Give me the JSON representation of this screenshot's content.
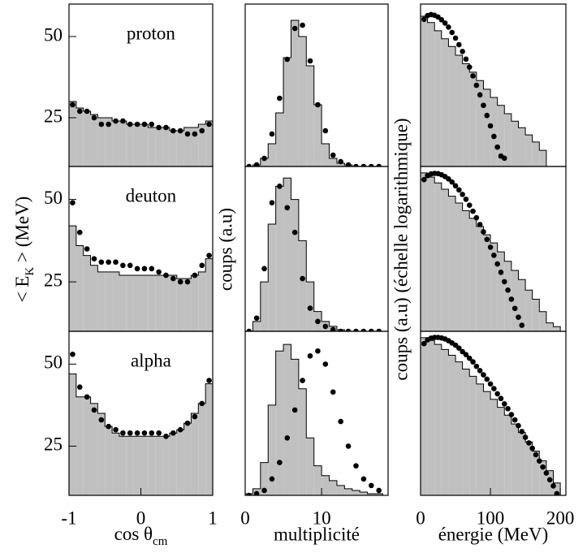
{
  "chart_data": [
    {
      "type": "histogram",
      "annotation": "proton",
      "xlim": [
        -1,
        1
      ],
      "ylim": [
        10,
        60
      ],
      "yticks": [
        25,
        50
      ],
      "bins": [
        -1,
        -0.9,
        -0.8,
        -0.7,
        -0.6,
        -0.5,
        -0.4,
        -0.3,
        -0.2,
        -0.1,
        0,
        0.1,
        0.2,
        0.3,
        0.4,
        0.5,
        0.6,
        0.7,
        0.8,
        0.9,
        1
      ],
      "counts": [
        30,
        28,
        27,
        26,
        25,
        25,
        24,
        24,
        23,
        23,
        23,
        22,
        22,
        22,
        21,
        21,
        22,
        22,
        23,
        24
      ],
      "points_x": [
        -0.95,
        -0.85,
        -0.75,
        -0.65,
        -0.55,
        -0.45,
        -0.35,
        -0.25,
        -0.15,
        -0.05,
        0.05,
        0.15,
        0.25,
        0.35,
        0.45,
        0.55,
        0.65,
        0.75,
        0.85,
        0.95
      ],
      "points_y": [
        29,
        27,
        27,
        25,
        23,
        23,
        24,
        24,
        23,
        23,
        23,
        23,
        22,
        22,
        21,
        21,
        20,
        20,
        21,
        23
      ]
    },
    {
      "type": "histogram",
      "xlim": [
        0,
        18.7
      ],
      "ylim": [
        0,
        100
      ],
      "bins": [
        0,
        1,
        2,
        3,
        4,
        5,
        6,
        7,
        8,
        9,
        10,
        11,
        12,
        13,
        14,
        15,
        16,
        17,
        18
      ],
      "counts": [
        0,
        1,
        5,
        14,
        33,
        67,
        90,
        80,
        62,
        38,
        14,
        5,
        2,
        1,
        0,
        0,
        0,
        0
      ],
      "points_x": [
        0.5,
        1.5,
        2.5,
        3.5,
        4.5,
        5.5,
        6.5,
        7.5,
        8.5,
        9.5,
        10.5,
        11.5,
        12.5,
        13.5,
        14.5,
        15.5,
        16.5,
        17.5
      ],
      "points_y": [
        0,
        1,
        5,
        20,
        42,
        66,
        85,
        87,
        65,
        38,
        22,
        7,
        3,
        1,
        0,
        0,
        0,
        0
      ]
    },
    {
      "type": "histogram",
      "log_y": true,
      "xlim": [
        0,
        208
      ],
      "ylim": [
        1,
        10000
      ],
      "bins": [
        0,
        10,
        20,
        30,
        40,
        50,
        60,
        70,
        80,
        90,
        100,
        110,
        120,
        130,
        140,
        150,
        160,
        170,
        180
      ],
      "counts": [
        5000,
        3500,
        2200,
        1400,
        900,
        550,
        340,
        210,
        130,
        80,
        50,
        32,
        20,
        13,
        9,
        6,
        4,
        2.5
      ],
      "points_x": [
        5,
        10,
        15,
        20,
        25,
        30,
        35,
        40,
        45,
        50,
        55,
        60,
        65,
        70,
        75,
        80,
        85,
        90,
        95,
        100,
        105,
        110,
        115,
        120
      ],
      "points_y": [
        4200,
        5200,
        5500,
        5300,
        4800,
        4100,
        3400,
        2700,
        2000,
        1450,
        1000,
        680,
        440,
        280,
        170,
        100,
        58,
        32,
        18,
        10,
        5.5,
        3,
        1.8,
        1.6
      ]
    },
    {
      "type": "histogram",
      "annotation": "deuton",
      "xlim": [
        -1,
        1
      ],
      "ylim": [
        10,
        60
      ],
      "yticks": [
        25,
        50
      ],
      "ylabel": [
        "< E",
        "K",
        " > (MeV)"
      ],
      "bins": [
        -1,
        -0.9,
        -0.8,
        -0.7,
        -0.6,
        -0.5,
        -0.4,
        -0.3,
        -0.2,
        -0.1,
        0,
        0.1,
        0.2,
        0.3,
        0.4,
        0.5,
        0.6,
        0.7,
        0.8,
        0.9,
        1
      ],
      "counts": [
        42,
        36,
        33,
        30,
        28,
        28,
        28,
        27,
        27,
        27,
        27,
        27,
        27,
        27,
        27,
        26,
        26,
        27,
        28,
        32
      ],
      "points_x": [
        -0.95,
        -0.85,
        -0.75,
        -0.65,
        -0.55,
        -0.45,
        -0.35,
        -0.25,
        -0.15,
        -0.05,
        0.05,
        0.15,
        0.25,
        0.35,
        0.45,
        0.55,
        0.65,
        0.75,
        0.85,
        0.95
      ],
      "points_y": [
        49,
        40,
        35,
        32,
        31,
        31,
        31,
        30,
        30,
        29,
        29,
        29,
        28,
        27,
        26,
        25,
        25,
        27,
        30,
        33
      ]
    },
    {
      "type": "histogram",
      "xlim": [
        0,
        18.7
      ],
      "ylim": [
        0,
        100
      ],
      "ylabel": "coups (a.u)",
      "bins": [
        0,
        1,
        2,
        3,
        4,
        5,
        6,
        7,
        8,
        9,
        10,
        11,
        12,
        13,
        14,
        15,
        16,
        17,
        18
      ],
      "counts": [
        0,
        6,
        30,
        65,
        88,
        93,
        80,
        55,
        30,
        12,
        6,
        3,
        1,
        0,
        0,
        0,
        0,
        0
      ],
      "points_x": [
        0.5,
        1.5,
        2.5,
        3.5,
        4.5,
        5.5,
        6.5,
        7.5,
        8.5,
        9.5,
        10.5,
        11.5,
        12.5,
        13.5,
        14.5,
        15.5,
        16.5,
        17.5
      ],
      "points_y": [
        0,
        8,
        38,
        78,
        88,
        75,
        60,
        32,
        14,
        6,
        3,
        1,
        0,
        0,
        0,
        0,
        0,
        0
      ]
    },
    {
      "type": "histogram",
      "log_y": true,
      "xlim": [
        0,
        208
      ],
      "ylim": [
        1,
        10000
      ],
      "ylabel": "coups (a.u) (échelle logarithmique)",
      "bins": [
        0,
        10,
        20,
        30,
        40,
        50,
        60,
        70,
        80,
        90,
        100,
        110,
        120,
        130,
        140,
        150,
        160,
        170,
        180,
        190,
        200
      ],
      "counts": [
        7000,
        5500,
        4000,
        2800,
        1900,
        1300,
        850,
        550,
        350,
        220,
        140,
        85,
        50,
        30,
        18,
        10,
        6,
        3,
        1.6,
        1.3
      ],
      "points_x": [
        5,
        10,
        15,
        20,
        25,
        30,
        35,
        40,
        45,
        50,
        55,
        60,
        65,
        70,
        75,
        80,
        85,
        90,
        95,
        100,
        105,
        110,
        115,
        120,
        125,
        130,
        135,
        140,
        145
      ],
      "points_y": [
        4800,
        6000,
        6600,
        6800,
        6700,
        6300,
        5700,
        5000,
        4200,
        3400,
        2700,
        2100,
        1600,
        1150,
        820,
        570,
        390,
        260,
        170,
        110,
        70,
        43,
        27,
        16,
        10,
        6,
        3.6,
        2.2,
        1.4
      ]
    },
    {
      "type": "histogram",
      "annotation": "alpha",
      "xlim": [
        -1,
        1
      ],
      "ylim": [
        10,
        60
      ],
      "yticks": [
        25,
        50
      ],
      "xticks": [
        -1,
        0,
        1
      ],
      "xlabel": [
        "cos  θ",
        "cm"
      ],
      "bins": [
        -1,
        -0.9,
        -0.8,
        -0.7,
        -0.6,
        -0.5,
        -0.4,
        -0.3,
        -0.2,
        -0.1,
        0,
        0.1,
        0.2,
        0.3,
        0.4,
        0.5,
        0.6,
        0.7,
        0.8,
        0.9,
        1
      ],
      "counts": [
        47,
        40,
        40,
        38,
        35,
        31,
        29,
        28,
        28,
        28,
        28,
        28,
        28,
        28,
        29,
        30,
        32,
        35,
        38,
        44
      ],
      "points_x": [
        -0.95,
        -0.85,
        -0.75,
        -0.65,
        -0.55,
        -0.45,
        -0.35,
        -0.25,
        -0.15,
        -0.05,
        0.05,
        0.15,
        0.25,
        0.35,
        0.45,
        0.55,
        0.65,
        0.75,
        0.85,
        0.95
      ],
      "points_y": [
        53,
        43,
        40,
        36,
        33,
        31,
        30,
        29,
        29,
        29,
        29,
        29,
        29,
        28,
        29,
        30,
        32,
        34,
        38,
        45
      ]
    },
    {
      "type": "histogram",
      "xlim": [
        0,
        18.7
      ],
      "ylim": [
        0,
        100
      ],
      "xticks": [
        0,
        10
      ],
      "xlabel": "multiplicité",
      "bins": [
        0,
        1,
        2,
        3,
        4,
        5,
        6,
        7,
        8,
        9,
        10,
        11,
        12,
        13,
        14,
        15,
        16,
        17,
        18,
        19
      ],
      "counts": [
        1,
        4,
        20,
        55,
        88,
        92,
        83,
        65,
        35,
        18,
        12,
        9,
        6,
        4,
        3,
        2,
        1,
        1,
        0
      ],
      "points_x": [
        0.5,
        1.5,
        2.5,
        3.5,
        4.5,
        5.5,
        6.5,
        7.5,
        8.5,
        9.5,
        10.5,
        11.5,
        12.5,
        13.5,
        14.5,
        15.5,
        16.5,
        17.5
      ],
      "points_y": [
        0,
        1,
        3,
        10,
        20,
        35,
        52,
        70,
        85,
        88,
        80,
        63,
        45,
        30,
        18,
        10,
        6,
        3
      ]
    },
    {
      "type": "histogram",
      "log_y": true,
      "xlim": [
        0,
        208
      ],
      "ylim": [
        1,
        10000
      ],
      "xticks": [
        0,
        100,
        200
      ],
      "xlabel": "énergie (MeV)",
      "bins": [
        0,
        10,
        20,
        30,
        40,
        50,
        60,
        70,
        80,
        90,
        100,
        110,
        120,
        130,
        140,
        150,
        160,
        170,
        180,
        190,
        200
      ],
      "counts": [
        7000,
        6000,
        4800,
        3600,
        2600,
        1800,
        1200,
        800,
        520,
        340,
        220,
        140,
        90,
        55,
        34,
        20,
        12,
        7,
        4,
        2
      ],
      "points_x": [
        5,
        10,
        15,
        20,
        25,
        30,
        35,
        40,
        45,
        50,
        55,
        60,
        65,
        70,
        75,
        80,
        85,
        90,
        95,
        100,
        105,
        110,
        115,
        120,
        125,
        130,
        135,
        140,
        145,
        150,
        155,
        160,
        165,
        170,
        175,
        180,
        185,
        190,
        195
      ],
      "points_y": [
        5000,
        6200,
        6800,
        7100,
        7100,
        6900,
        6500,
        5900,
        5200,
        4600,
        3900,
        3200,
        2700,
        2200,
        1800,
        1400,
        1100,
        870,
        680,
        520,
        400,
        300,
        230,
        170,
        130,
        93,
        69,
        50,
        36,
        26,
        19,
        14,
        9.8,
        6.9,
        4.9,
        3.5,
        2.4,
        1.7,
        1.1
      ]
    }
  ]
}
